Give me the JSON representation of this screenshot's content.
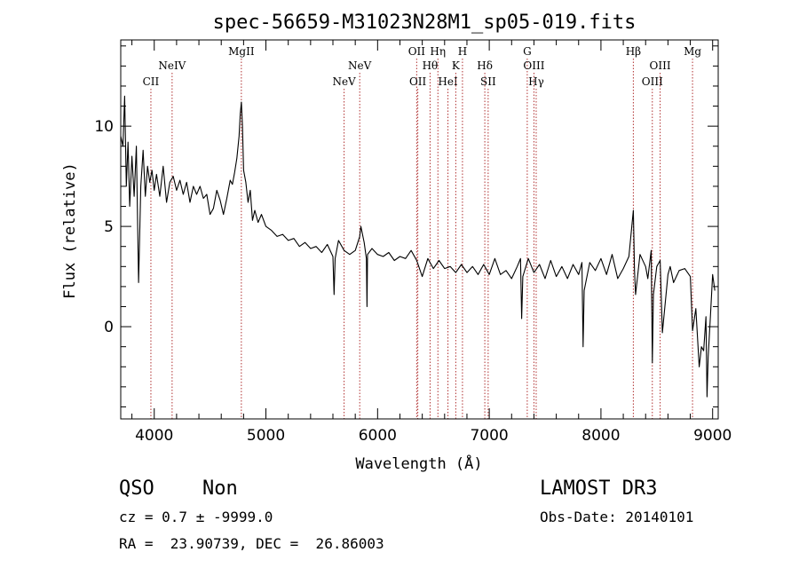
{
  "chart_data": {
    "type": "line",
    "title": "spec-56659-M31023N28M1_sp05-019.fits",
    "xlabel": "Wavelength (Å)",
    "ylabel": "Flux (relative)",
    "xlim": [
      3700,
      9050
    ],
    "ylim": [
      -4.6,
      14.3
    ],
    "xticks": [
      4000,
      5000,
      6000,
      7000,
      8000,
      9000
    ],
    "yticks": [
      0,
      5,
      10
    ],
    "series": [
      {
        "name": "flux",
        "x": [
          3700,
          3720,
          3735,
          3750,
          3765,
          3780,
          3800,
          3820,
          3840,
          3860,
          3880,
          3900,
          3920,
          3940,
          3960,
          3980,
          4000,
          4020,
          4050,
          4080,
          4110,
          4140,
          4170,
          4200,
          4230,
          4260,
          4290,
          4320,
          4350,
          4380,
          4410,
          4440,
          4470,
          4500,
          4530,
          4560,
          4590,
          4620,
          4650,
          4680,
          4700,
          4720,
          4740,
          4760,
          4770,
          4780,
          4790,
          4800,
          4820,
          4840,
          4860,
          4880,
          4900,
          4930,
          4960,
          5000,
          5050,
          5100,
          5150,
          5200,
          5250,
          5300,
          5350,
          5400,
          5450,
          5500,
          5550,
          5600,
          5610,
          5620,
          5650,
          5700,
          5750,
          5800,
          5840,
          5850,
          5880,
          5900,
          5905,
          5910,
          5950,
          6000,
          6050,
          6100,
          6150,
          6200,
          6250,
          6300,
          6350,
          6400,
          6450,
          6500,
          6550,
          6600,
          6650,
          6700,
          6750,
          6800,
          6850,
          6900,
          6950,
          7000,
          7050,
          7100,
          7150,
          7200,
          7250,
          7280,
          7290,
          7300,
          7350,
          7400,
          7450,
          7500,
          7550,
          7600,
          7650,
          7700,
          7750,
          7800,
          7830,
          7840,
          7850,
          7900,
          7950,
          8000,
          8050,
          8100,
          8150,
          8200,
          8250,
          8290,
          8300,
          8310,
          8350,
          8400,
          8420,
          8450,
          8460,
          8470,
          8500,
          8530,
          8550,
          8600,
          8620,
          8650,
          8700,
          8750,
          8800,
          8820,
          8850,
          8880,
          8900,
          8920,
          8940,
          8950,
          8960,
          8980,
          9000,
          9020
        ],
        "values": [
          9.5,
          9.0,
          11.5,
          7.0,
          9.2,
          6.0,
          8.5,
          6.5,
          9.0,
          2.2,
          7.0,
          8.8,
          6.5,
          8.0,
          7.2,
          7.8,
          6.8,
          7.6,
          6.5,
          8.0,
          6.2,
          7.2,
          7.5,
          6.8,
          7.3,
          6.6,
          7.2,
          6.2,
          7.0,
          6.6,
          7.0,
          6.4,
          6.6,
          5.6,
          5.9,
          6.8,
          6.3,
          5.6,
          6.4,
          7.3,
          7.1,
          7.7,
          8.4,
          9.5,
          10.6,
          11.2,
          10.0,
          7.8,
          7.2,
          6.2,
          6.8,
          5.3,
          5.8,
          5.2,
          5.6,
          5.0,
          4.8,
          4.5,
          4.6,
          4.3,
          4.4,
          4.0,
          4.2,
          3.9,
          4.0,
          3.7,
          4.1,
          3.5,
          1.6,
          3.4,
          4.3,
          3.8,
          3.6,
          3.8,
          4.5,
          5.0,
          4.2,
          3.4,
          1.0,
          3.6,
          3.9,
          3.6,
          3.5,
          3.7,
          3.3,
          3.5,
          3.4,
          3.8,
          3.3,
          2.5,
          3.4,
          2.9,
          3.3,
          2.9,
          3.0,
          2.7,
          3.1,
          2.7,
          3.0,
          2.6,
          3.1,
          2.6,
          3.4,
          2.6,
          2.8,
          2.4,
          3.0,
          3.4,
          0.4,
          2.5,
          3.4,
          2.7,
          3.1,
          2.4,
          3.3,
          2.5,
          3.0,
          2.4,
          3.1,
          2.6,
          3.2,
          -1.0,
          1.8,
          3.2,
          2.8,
          3.4,
          2.6,
          3.6,
          2.4,
          2.9,
          3.5,
          5.8,
          2.8,
          1.6,
          3.6,
          3.0,
          2.4,
          3.8,
          -1.8,
          1.6,
          3.0,
          3.3,
          -0.3,
          2.6,
          3.0,
          2.2,
          2.8,
          2.9,
          2.5,
          -0.2,
          0.9,
          -2.0,
          -1.0,
          -1.2,
          0.5,
          -3.5,
          -1.5,
          0.5,
          2.6,
          1.8
        ],
        "color": "#000000"
      }
    ],
    "line_markers": [
      {
        "name": "CII",
        "x": 3970,
        "row": 3
      },
      {
        "name": "NeIV",
        "x": 4160,
        "row": 2
      },
      {
        "name": "MgII",
        "x": 4780,
        "row": 1
      },
      {
        "name": "NeV",
        "x": 5700,
        "row": 3
      },
      {
        "name": "NeV",
        "x": 5840,
        "row": 2
      },
      {
        "name": "OII",
        "x": 6350,
        "row": 1
      },
      {
        "name": "OII",
        "x": 6360,
        "row": 3
      },
      {
        "name": "Hθ",
        "x": 6470,
        "row": 2
      },
      {
        "name": "Hη",
        "x": 6540,
        "row": 1
      },
      {
        "name": "HeI",
        "x": 6630,
        "row": 3
      },
      {
        "name": "K",
        "x": 6700,
        "row": 2
      },
      {
        "name": "H",
        "x": 6760,
        "row": 1
      },
      {
        "name": "Hδ",
        "x": 6960,
        "row": 2
      },
      {
        "name": "SII",
        "x": 6990,
        "row": 3
      },
      {
        "name": "G",
        "x": 7340,
        "row": 1
      },
      {
        "name": "OIII",
        "x": 7400,
        "row": 2
      },
      {
        "name": "Hγ",
        "x": 7420,
        "row": 3
      },
      {
        "name": "Hβ",
        "x": 8290,
        "row": 1
      },
      {
        "name": "OIII",
        "x": 8460,
        "row": 3
      },
      {
        "name": "OIII",
        "x": 8530,
        "row": 2
      },
      {
        "name": "Mg",
        "x": 8820,
        "row": 1
      }
    ],
    "marker_color": "#b03030"
  },
  "info": {
    "class": "QSO",
    "subclass": "Non",
    "survey": "LAMOST DR3",
    "cz": "cz = 0.7 ± -9999.0",
    "obs_date": "Obs-Date: 20140101",
    "radec": "RA =  23.90739, DEC =  26.86003"
  }
}
